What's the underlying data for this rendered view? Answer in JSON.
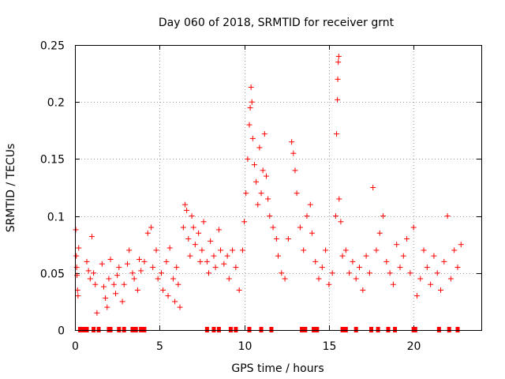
{
  "chart_data": {
    "type": "scatter",
    "title": "Day 060 of 2018, SRMTID for receiver grnt",
    "xlabel": "GPS time / hours",
    "ylabel": "SRMTID / TECUs",
    "xlim": [
      0,
      24
    ],
    "ylim": [
      0,
      0.25
    ],
    "x_ticks": [
      0,
      5,
      10,
      15,
      20
    ],
    "x_tick_labels": [
      "0",
      "5",
      "10",
      "15",
      "20"
    ],
    "y_ticks": [
      0,
      0.05,
      0.1,
      0.15,
      0.2,
      0.25
    ],
    "y_tick_labels": [
      "0",
      "0.05",
      "0.1",
      "0.15",
      "0.2",
      "0.25"
    ],
    "grid": true,
    "marker": "plus",
    "color": "#ff0000",
    "series": [
      {
        "name": "SRMTID",
        "points": [
          [
            0.05,
            0.088
          ],
          [
            0.08,
            0.065
          ],
          [
            0.1,
            0.055
          ],
          [
            0.12,
            0.048
          ],
          [
            0.15,
            0.035
          ],
          [
            0.18,
            0.03
          ],
          [
            0.22,
            0.072
          ],
          [
            0.7,
            0.06
          ],
          [
            0.8,
            0.052
          ],
          [
            0.9,
            0.045
          ],
          [
            1.0,
            0.082
          ],
          [
            1.1,
            0.05
          ],
          [
            1.2,
            0.04
          ],
          [
            1.3,
            0.015
          ],
          [
            1.6,
            0.058
          ],
          [
            1.7,
            0.038
          ],
          [
            1.8,
            0.028
          ],
          [
            1.9,
            0.02
          ],
          [
            2.0,
            0.045
          ],
          [
            2.1,
            0.062
          ],
          [
            2.3,
            0.04
          ],
          [
            2.4,
            0.032
          ],
          [
            2.5,
            0.048
          ],
          [
            2.6,
            0.055
          ],
          [
            2.8,
            0.025
          ],
          [
            2.9,
            0.04
          ],
          [
            3.1,
            0.058
          ],
          [
            3.2,
            0.07
          ],
          [
            3.4,
            0.05
          ],
          [
            3.5,
            0.045
          ],
          [
            3.7,
            0.035
          ],
          [
            3.8,
            0.062
          ],
          [
            3.9,
            0.052
          ],
          [
            4.1,
            0.06
          ],
          [
            4.3,
            0.085
          ],
          [
            4.5,
            0.09
          ],
          [
            4.6,
            0.055
          ],
          [
            4.8,
            0.07
          ],
          [
            4.9,
            0.045
          ],
          [
            5.1,
            0.05
          ],
          [
            5.2,
            0.035
          ],
          [
            5.4,
            0.06
          ],
          [
            5.5,
            0.03
          ],
          [
            5.6,
            0.072
          ],
          [
            5.8,
            0.045
          ],
          [
            5.9,
            0.025
          ],
          [
            6.0,
            0.055
          ],
          [
            6.1,
            0.04
          ],
          [
            6.2,
            0.02
          ],
          [
            6.4,
            0.09
          ],
          [
            6.5,
            0.11
          ],
          [
            6.6,
            0.105
          ],
          [
            6.7,
            0.08
          ],
          [
            6.8,
            0.065
          ],
          [
            6.9,
            0.1
          ],
          [
            7.0,
            0.09
          ],
          [
            7.1,
            0.075
          ],
          [
            7.3,
            0.085
          ],
          [
            7.4,
            0.06
          ],
          [
            7.5,
            0.07
          ],
          [
            7.6,
            0.095
          ],
          [
            7.8,
            0.06
          ],
          [
            7.9,
            0.05
          ],
          [
            8.0,
            0.078
          ],
          [
            8.2,
            0.065
          ],
          [
            8.3,
            0.055
          ],
          [
            8.5,
            0.088
          ],
          [
            8.6,
            0.07
          ],
          [
            8.8,
            0.058
          ],
          [
            9.0,
            0.065
          ],
          [
            9.1,
            0.045
          ],
          [
            9.3,
            0.07
          ],
          [
            9.5,
            0.055
          ],
          [
            9.7,
            0.035
          ],
          [
            9.9,
            0.07
          ],
          [
            10.0,
            0.095
          ],
          [
            10.1,
            0.12
          ],
          [
            10.2,
            0.15
          ],
          [
            10.3,
            0.18
          ],
          [
            10.35,
            0.195
          ],
          [
            10.4,
            0.213
          ],
          [
            10.45,
            0.2
          ],
          [
            10.5,
            0.168
          ],
          [
            10.6,
            0.145
          ],
          [
            10.7,
            0.13
          ],
          [
            10.8,
            0.11
          ],
          [
            10.9,
            0.16
          ],
          [
            11.0,
            0.12
          ],
          [
            11.1,
            0.14
          ],
          [
            11.2,
            0.172
          ],
          [
            11.3,
            0.135
          ],
          [
            11.4,
            0.115
          ],
          [
            11.5,
            0.1
          ],
          [
            11.7,
            0.09
          ],
          [
            11.9,
            0.08
          ],
          [
            12.0,
            0.065
          ],
          [
            12.2,
            0.05
          ],
          [
            12.4,
            0.045
          ],
          [
            12.6,
            0.08
          ],
          [
            12.8,
            0.165
          ],
          [
            12.9,
            0.155
          ],
          [
            13.0,
            0.14
          ],
          [
            13.1,
            0.12
          ],
          [
            13.3,
            0.09
          ],
          [
            13.5,
            0.07
          ],
          [
            13.7,
            0.1
          ],
          [
            13.9,
            0.11
          ],
          [
            14.0,
            0.085
          ],
          [
            14.2,
            0.06
          ],
          [
            14.4,
            0.045
          ],
          [
            14.6,
            0.055
          ],
          [
            14.8,
            0.07
          ],
          [
            15.0,
            0.04
          ],
          [
            15.2,
            0.05
          ],
          [
            15.4,
            0.1
          ],
          [
            15.45,
            0.172
          ],
          [
            15.5,
            0.202
          ],
          [
            15.52,
            0.22
          ],
          [
            15.55,
            0.235
          ],
          [
            15.58,
            0.24
          ],
          [
            15.6,
            0.115
          ],
          [
            15.7,
            0.095
          ],
          [
            15.8,
            0.065
          ],
          [
            16.0,
            0.07
          ],
          [
            16.2,
            0.05
          ],
          [
            16.4,
            0.06
          ],
          [
            16.6,
            0.045
          ],
          [
            16.8,
            0.055
          ],
          [
            17.0,
            0.035
          ],
          [
            17.2,
            0.065
          ],
          [
            17.4,
            0.05
          ],
          [
            17.6,
            0.125
          ],
          [
            17.8,
            0.07
          ],
          [
            18.0,
            0.085
          ],
          [
            18.2,
            0.1
          ],
          [
            18.4,
            0.06
          ],
          [
            18.6,
            0.05
          ],
          [
            18.8,
            0.04
          ],
          [
            19.0,
            0.075
          ],
          [
            19.2,
            0.055
          ],
          [
            19.4,
            0.065
          ],
          [
            19.6,
            0.08
          ],
          [
            19.8,
            0.05
          ],
          [
            20.0,
            0.09
          ],
          [
            20.2,
            0.03
          ],
          [
            20.4,
            0.045
          ],
          [
            20.6,
            0.07
          ],
          [
            20.8,
            0.055
          ],
          [
            21.0,
            0.04
          ],
          [
            21.2,
            0.065
          ],
          [
            21.4,
            0.05
          ],
          [
            21.6,
            0.035
          ],
          [
            21.8,
            0.06
          ],
          [
            22.0,
            0.1
          ],
          [
            22.2,
            0.045
          ],
          [
            22.4,
            0.07
          ],
          [
            22.6,
            0.055
          ],
          [
            22.8,
            0.075
          ]
        ]
      }
    ],
    "zero_markers_x": [
      0.3,
      0.5,
      0.7,
      1.1,
      1.4,
      2.0,
      2.1,
      2.6,
      2.9,
      3.4,
      3.6,
      3.9,
      4.1,
      7.8,
      8.2,
      8.5,
      9.2,
      9.5,
      10.3,
      11.0,
      11.6,
      13.4,
      13.6,
      14.1,
      14.3,
      15.8,
      16.0,
      16.6,
      17.5,
      17.9,
      18.5,
      18.9,
      20.0,
      20.1,
      21.5,
      22.1,
      22.6
    ]
  }
}
